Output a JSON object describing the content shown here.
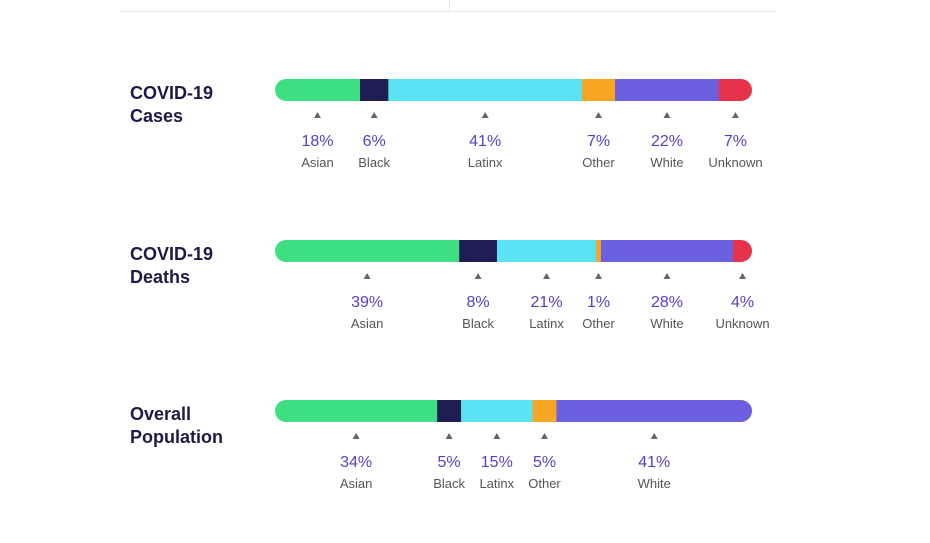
{
  "chart_data": {
    "type": "bar",
    "subtype": "100%-stacked-horizontal",
    "colors": {
      "Asian": "#3ddf82",
      "Black": "#1e1e52",
      "Latinx": "#5ae4f3",
      "Other": "#f6a623",
      "White": "#6a60e0",
      "Unknown": "#e6334b"
    },
    "rows": [
      {
        "title": [
          "COVID-19",
          "Cases"
        ],
        "segments": [
          {
            "category": "Asian",
            "value": 18,
            "label": "18%"
          },
          {
            "category": "Black",
            "value": 6,
            "label": "6%"
          },
          {
            "category": "Latinx",
            "value": 41,
            "label": "41%"
          },
          {
            "category": "Other",
            "value": 7,
            "label": "7%"
          },
          {
            "category": "White",
            "value": 22,
            "label": "22%"
          },
          {
            "category": "Unknown",
            "value": 7,
            "label": "7%"
          }
        ]
      },
      {
        "title": [
          "COVID-19",
          "Deaths"
        ],
        "segments": [
          {
            "category": "Asian",
            "value": 39,
            "label": "39%"
          },
          {
            "category": "Black",
            "value": 8,
            "label": "8%"
          },
          {
            "category": "Latinx",
            "value": 21,
            "label": "21%"
          },
          {
            "category": "Other",
            "value": 1,
            "label": "1%"
          },
          {
            "category": "White",
            "value": 28,
            "label": "28%"
          },
          {
            "category": "Unknown",
            "value": 4,
            "label": "4%"
          }
        ]
      },
      {
        "title": [
          "Overall",
          "Population"
        ],
        "segments": [
          {
            "category": "Asian",
            "value": 34,
            "label": "34%"
          },
          {
            "category": "Black",
            "value": 5,
            "label": "5%"
          },
          {
            "category": "Latinx",
            "value": 15,
            "label": "15%"
          },
          {
            "category": "Other",
            "value": 5,
            "label": "5%"
          },
          {
            "category": "White",
            "value": 41,
            "label": "41%"
          }
        ]
      }
    ]
  }
}
